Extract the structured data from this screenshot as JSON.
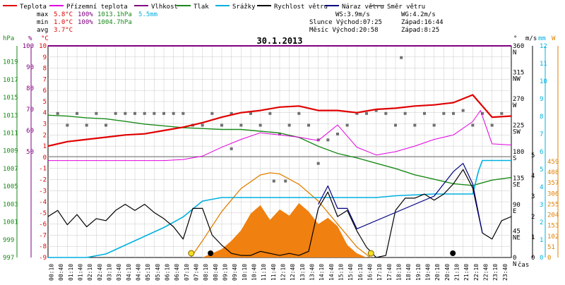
{
  "legend": [
    {
      "label": "Teplota",
      "color": "#e00000"
    },
    {
      "label": "Přízemní teplota",
      "color": "#e000e0"
    },
    {
      "label": "Vlhkost",
      "color": "#800080"
    },
    {
      "label": "Tlak",
      "color": "#1a8a1a"
    },
    {
      "label": "Srážky",
      "color": "#00b0e0"
    },
    {
      "label": "Rychlost větru",
      "color": "#000000"
    },
    {
      "label": "Náraz větru",
      "color": "#000080"
    },
    {
      "label": "Směr větru",
      "color": "#707070"
    }
  ],
  "stats": {
    "max_label": "max",
    "min_label": "min",
    "avg_label": "avg",
    "max_temp": "5.8°C",
    "max_hum": "100%",
    "max_press": "1013.1hPa",
    "max_rain": "5.5mm",
    "min_temp": "1.0°C",
    "min_hum": "100%",
    "min_press": "1004.7hPa",
    "avg_temp": "3.7°C",
    "ws": "WS:3.9m/s",
    "wg": "WG:4.2m/s",
    "sun": "Slunce Východ:07:25",
    "sun_set": "Západ:16:44",
    "moon": "Měsíc  Východ:20:58",
    "moon_set": "Západ:8:25"
  },
  "chart_data": {
    "type": "line",
    "title": "30.1.2013",
    "xlabel": "čas",
    "x_ticks": [
      "00:10",
      "00:40",
      "01:10",
      "01:40",
      "02:10",
      "02:40",
      "03:10",
      "03:40",
      "04:10",
      "04:40",
      "05:10",
      "05:40",
      "06:10",
      "06:40",
      "07:10",
      "07:40",
      "08:10",
      "08:40",
      "09:10",
      "09:40",
      "10:10",
      "10:40",
      "11:10",
      "11:40",
      "12:10",
      "12:40",
      "13:10",
      "13:40",
      "14:10",
      "14:40",
      "15:10",
      "15:40",
      "16:10",
      "16:40",
      "17:10",
      "17:40",
      "18:10",
      "18:40",
      "19:10",
      "19:40",
      "20:10",
      "20:40",
      "21:10",
      "21:40",
      "22:10",
      "22:40",
      "23:10",
      "23:40"
    ],
    "axes": {
      "hpa": {
        "label": "hPa",
        "color": "#1a8a1a",
        "ticks": [
          "997",
          "999",
          "1001",
          "1003",
          "1005",
          "1007",
          "1009",
          "1011",
          "1013",
          "1015",
          "1017",
          "1019"
        ],
        "range": [
          997,
          1020.5
        ]
      },
      "percent": {
        "label": "%",
        "color": "#800080",
        "ticks": [
          "50",
          "60",
          "70",
          "80",
          "90",
          "100"
        ],
        "range": [
          50,
          100
        ]
      },
      "celsius": {
        "label": "°C",
        "color": "#e00000",
        "ticks": [
          "-9",
          "-8",
          "-7",
          "-6",
          "-5",
          "-4",
          "-3",
          "-2",
          "-1",
          "0",
          "1",
          "2",
          "3",
          "4",
          "5",
          "6",
          "7",
          "8",
          "9",
          "10"
        ],
        "range": [
          -9,
          10
        ]
      },
      "direction": {
        "label": "°",
        "ticks": [
          "360 N",
          "315 NW",
          "270 W",
          "225 SW",
          "180 S",
          "135 SE",
          "90 E",
          "45 NE",
          "0 N"
        ]
      },
      "wind_ms": {
        "label": "m/s",
        "ticks": [
          "0",
          "1",
          "2",
          "3",
          "4",
          "5"
        ],
        "range": [
          0,
          5
        ]
      },
      "rain_mm": {
        "label": "mm",
        "color": "#00b0e0",
        "ticks": [
          "0",
          "1",
          "2",
          "3",
          "4",
          "5",
          "6",
          "7",
          "8",
          "9",
          "10",
          "11",
          "12"
        ],
        "range": [
          0,
          12
        ]
      },
      "solar": {
        "label": "W",
        "color": "#e08000",
        "ticks": [
          "0",
          "51",
          "102",
          "153",
          "204",
          "255",
          "306",
          "357",
          "408",
          "459"
        ],
        "range": [
          0,
          459
        ]
      }
    },
    "series": [
      {
        "name": "Teplota",
        "unit": "°C",
        "color": "#e00000",
        "x": [
          0,
          1,
          2,
          3,
          4,
          5,
          6,
          7,
          8,
          9,
          10,
          11,
          12,
          13,
          14,
          15,
          16,
          17,
          18,
          19,
          20,
          21,
          22,
          23,
          24
        ],
        "y": [
          1.0,
          1.4,
          1.6,
          1.8,
          2.0,
          2.1,
          2.4,
          2.7,
          3.1,
          3.6,
          4.0,
          4.2,
          4.5,
          4.6,
          4.2,
          4.2,
          4.0,
          4.3,
          4.4,
          4.6,
          4.7,
          4.9,
          5.6,
          3.6,
          3.7
        ]
      },
      {
        "name": "Přízemní teplota",
        "unit": "°C",
        "color": "#e000e0",
        "x": [
          0,
          1,
          2,
          3,
          4,
          5,
          6,
          7,
          8,
          9,
          10,
          11,
          12,
          13,
          14,
          15,
          16,
          17,
          18,
          19,
          20,
          21,
          22,
          22.4,
          23,
          24
        ],
        "y": [
          -0.3,
          -0.3,
          -0.3,
          -0.3,
          -0.3,
          -0.3,
          -0.3,
          -0.2,
          0.1,
          0.9,
          1.6,
          2.2,
          2.0,
          1.8,
          1.5,
          2.9,
          0.9,
          0.2,
          0.5,
          1.0,
          1.6,
          2.0,
          3.2,
          4.2,
          1.2,
          1.1
        ]
      },
      {
        "name": "Vlhkost",
        "unit": "%",
        "color": "#800080",
        "x": [
          0,
          24
        ],
        "y": [
          100,
          100
        ]
      },
      {
        "name": "Tlak",
        "unit": "hPa",
        "color": "#1a8a1a",
        "x": [
          0,
          1,
          2,
          3,
          4,
          5,
          6,
          7,
          8,
          9,
          10,
          11,
          12,
          13,
          14,
          15,
          16,
          17,
          18,
          19,
          20,
          21,
          22,
          23,
          24
        ],
        "y": [
          1013.0,
          1012.9,
          1012.7,
          1012.6,
          1012.3,
          1012.0,
          1011.8,
          1011.6,
          1011.5,
          1011.4,
          1011.4,
          1011.2,
          1011.0,
          1010.5,
          1009.5,
          1008.7,
          1008.2,
          1007.6,
          1007.0,
          1006.3,
          1005.8,
          1005.3,
          1005.1,
          1005.7,
          1006.0
        ]
      },
      {
        "name": "Srážky",
        "unit": "mm",
        "color": "#00b0e0",
        "x": [
          0,
          2,
          3,
          4,
          5,
          6,
          7,
          8,
          9,
          10,
          12,
          14,
          15,
          16,
          17,
          18,
          20,
          22,
          22.3,
          22.5,
          24
        ],
        "y": [
          0,
          0,
          0.2,
          0.7,
          1.2,
          1.7,
          2.3,
          3.2,
          3.4,
          3.4,
          3.4,
          3.4,
          3.4,
          3.4,
          3.4,
          3.5,
          3.6,
          3.6,
          4.9,
          5.5,
          5.5
        ]
      },
      {
        "name": "Rychlost větru",
        "unit": "m/s",
        "color": "#000000",
        "x": [
          0,
          0.5,
          1,
          1.5,
          2,
          2.5,
          3,
          3.5,
          4,
          4.5,
          5,
          5.5,
          6,
          6.5,
          7,
          7.5,
          8,
          8.5,
          9,
          9.5,
          10,
          10.5,
          11,
          11.5,
          12,
          12.5,
          13,
          13.5,
          14,
          14.5,
          15,
          15.5,
          16,
          16.5,
          17,
          17.5,
          18,
          18.5,
          19,
          19.5,
          20,
          20.5,
          21,
          21.5,
          22,
          22.5,
          23,
          23.5,
          24
        ],
        "y": [
          2.0,
          2.3,
          1.6,
          2.1,
          1.5,
          1.9,
          1.8,
          2.3,
          2.6,
          2.3,
          2.6,
          2.2,
          1.9,
          1.5,
          0.9,
          2.4,
          2.4,
          1.1,
          0.6,
          0.2,
          0.1,
          0.1,
          0.3,
          0.2,
          0.1,
          0.2,
          0.1,
          0.3,
          2.4,
          3.2,
          2.0,
          2.3,
          1.3,
          0.5,
          0,
          0.1,
          2.3,
          2.9,
          2.9,
          3.1,
          2.8,
          3.1,
          3.6,
          4.3,
          3.4,
          1.2,
          0.9,
          1.8,
          2.0
        ]
      },
      {
        "name": "Náraz větru",
        "unit": "m/s",
        "color": "#000080",
        "x": [
          14,
          14.5,
          15,
          15.5,
          16,
          20,
          21,
          21.5,
          22,
          22.5
        ],
        "y": [
          2.6,
          3.5,
          2.4,
          2.4,
          1.4,
          3.0,
          4.2,
          4.6,
          3.6,
          1.2
        ]
      },
      {
        "name": "Směr větru",
        "unit": "°",
        "color": "#707070",
        "x": [
          0.5,
          1,
          1.5,
          2,
          2.5,
          3,
          3.5,
          4,
          4.5,
          5,
          5.5,
          6,
          6.5,
          7,
          7.5,
          8,
          8.5,
          9,
          9.5,
          10,
          10.5,
          11,
          11.5,
          12,
          12.5,
          13,
          13.5,
          14,
          14.5,
          15,
          15.5,
          16,
          16.5,
          17,
          17.5,
          18,
          18.5,
          19,
          19.5,
          20,
          20.5,
          21,
          21.5,
          22,
          22.5,
          23,
          23.5,
          9.5,
          11.7,
          12.3,
          14,
          18.3
        ],
        "y": [
          245,
          225,
          245,
          225,
          245,
          225,
          245,
          245,
          245,
          245,
          245,
          245,
          245,
          245,
          225,
          225,
          245,
          225,
          245,
          225,
          245,
          225,
          245,
          210,
          225,
          245,
          225,
          200,
          200,
          210,
          225,
          245,
          245,
          250,
          245,
          225,
          245,
          225,
          245,
          225,
          245,
          245,
          250,
          225,
          245,
          225,
          245,
          185,
          130,
          130,
          160,
          340
        ]
      },
      {
        "name": "Solar radiation",
        "unit": "W/m2",
        "color": "#e08000",
        "x": [
          7.2,
          8,
          8.5,
          9,
          9.5,
          10,
          10.5,
          11,
          11.5,
          12,
          12.5,
          13,
          13.5,
          14,
          14.5,
          15,
          15.5,
          16,
          16.5
        ],
        "y": [
          0,
          0,
          20,
          40,
          80,
          130,
          210,
          250,
          180,
          230,
          200,
          260,
          220,
          160,
          190,
          150,
          60,
          20,
          0
        ]
      },
      {
        "name": "Theoretical solar",
        "unit": "W/m2",
        "color": "#e08000",
        "x": [
          7.4,
          8,
          9,
          10,
          11,
          11.5,
          12,
          13,
          14,
          15,
          16,
          16.7
        ],
        "y": [
          0,
          80,
          220,
          330,
          395,
          405,
          400,
          350,
          270,
          160,
          50,
          0
        ]
      }
    ],
    "sun_markers": [
      {
        "t": "07:25",
        "x": 7.42
      },
      {
        "t": "16:44",
        "x": 16.73
      }
    ],
    "moon_markers": [
      {
        "t": "08:25",
        "x": 8.42
      },
      {
        "t": "20:58",
        "x": 20.97
      }
    ],
    "grid": true
  }
}
